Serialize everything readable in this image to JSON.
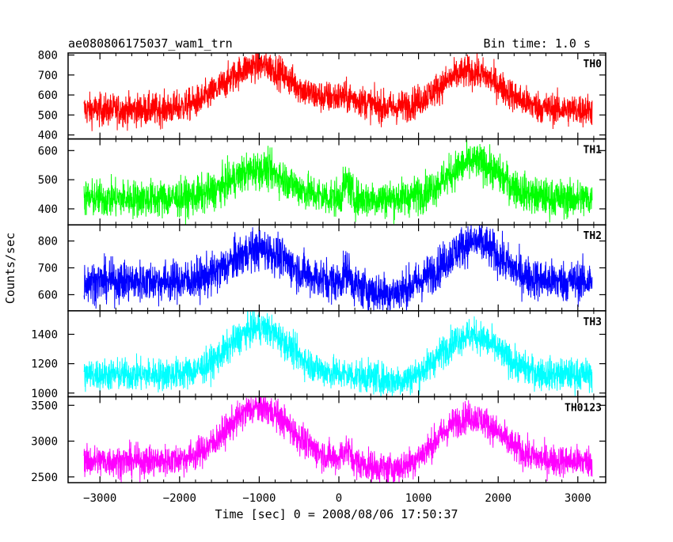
{
  "header": {
    "title": "ae080806175037_wam1_trn",
    "bin_time": "Bin time: 1.0 s"
  },
  "chart_data": {
    "type": "line",
    "xlabel": "Time [sec] 0 = 2008/08/06 17:50:37",
    "ylabel": "Counts/sec",
    "xlim": [
      -3400,
      3350
    ],
    "x_start": -3200,
    "x_end": 3180,
    "x_ticks": [
      -3000,
      -2000,
      -1000,
      0,
      1000,
      2000,
      3000
    ],
    "x_tick_labels": [
      "−3000",
      "−2000",
      "−1000",
      "0",
      "1000",
      "2000",
      "3000"
    ],
    "panels": [
      {
        "name": "TH0",
        "color": "#ff0000",
        "ylim": [
          380,
          810
        ],
        "yticks": [
          400,
          500,
          600,
          700,
          800
        ],
        "baseline": 525,
        "noise": 40,
        "features": [
          {
            "center": -1000,
            "width": 600,
            "amp": 225
          },
          {
            "center": 1650,
            "width": 550,
            "amp": 190
          },
          {
            "center": 100,
            "width": 350,
            "amp": 55
          }
        ]
      },
      {
        "name": "TH1",
        "color": "#00ff00",
        "ylim": [
          345,
          640
        ],
        "yticks": [
          400,
          500,
          600
        ],
        "baseline": 435,
        "noise": 32,
        "features": [
          {
            "center": -1000,
            "width": 500,
            "amp": 100
          },
          {
            "center": 1700,
            "width": 480,
            "amp": 125
          },
          {
            "center": 100,
            "width": 60,
            "amp": 55
          }
        ]
      },
      {
        "name": "TH2",
        "color": "#0000ff",
        "ylim": [
          540,
          860
        ],
        "yticks": [
          600,
          700,
          800
        ],
        "baseline": 650,
        "noise": 38,
        "features": [
          {
            "center": -1000,
            "width": 480,
            "amp": 120
          },
          {
            "center": 1700,
            "width": 460,
            "amp": 145
          },
          {
            "center": 100,
            "width": 60,
            "amp": 50
          },
          {
            "center": 600,
            "width": 400,
            "amp": -45
          }
        ]
      },
      {
        "name": "TH3",
        "color": "#00ffff",
        "ylim": [
          975,
          1560
        ],
        "yticks": [
          1000,
          1200,
          1400
        ],
        "baseline": 1125,
        "noise": 55,
        "features": [
          {
            "center": -1000,
            "width": 520,
            "amp": 320
          },
          {
            "center": 1650,
            "width": 500,
            "amp": 270
          },
          {
            "center": 800,
            "width": 400,
            "amp": -50
          }
        ]
      },
      {
        "name": "TH0123",
        "color": "#ff00ff",
        "ylim": [
          2420,
          3620
        ],
        "yticks": [
          2500,
          3000,
          3500
        ],
        "baseline": 2720,
        "noise": 110,
        "features": [
          {
            "center": -1000,
            "width": 560,
            "amp": 750
          },
          {
            "center": 1650,
            "width": 520,
            "amp": 620
          },
          {
            "center": 100,
            "width": 80,
            "amp": 150
          },
          {
            "center": 700,
            "width": 400,
            "amp": -120
          }
        ]
      }
    ]
  }
}
